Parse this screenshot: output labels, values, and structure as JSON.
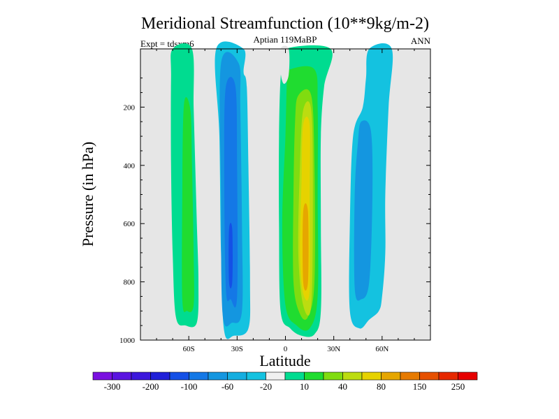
{
  "chart_data": {
    "type": "heatmap",
    "subtype": "filled-contour",
    "title": "Meridional Streamfunction (10**9kg/m-2)",
    "subtitle": "Aptian   119MaBP",
    "left_label": "Expt = tdsxm6",
    "right_label": "ANN",
    "xlabel": "Latitude",
    "ylabel": "Pressure (in hPa)",
    "xlim": [
      -90,
      90
    ],
    "ylim": [
      0,
      1000
    ],
    "y_inverted": true,
    "x_ticks": [
      {
        "value": -60,
        "label": "60S"
      },
      {
        "value": -30,
        "label": "30S"
      },
      {
        "value": 0,
        "label": "0"
      },
      {
        "value": 30,
        "label": "30N"
      },
      {
        "value": 60,
        "label": "60N"
      }
    ],
    "y_ticks": [
      {
        "value": 200,
        "label": "200"
      },
      {
        "value": 400,
        "label": "400"
      },
      {
        "value": 600,
        "label": "600"
      },
      {
        "value": 800,
        "label": "800"
      },
      {
        "value": 1000,
        "label": "1000"
      }
    ],
    "background_color": "#e6e6e6",
    "colorbar": {
      "colors": [
        "#7a10e0",
        "#5a14e0",
        "#3c18dc",
        "#2020d8",
        "#1450e6",
        "#1478e6",
        "#1496e0",
        "#14aee0",
        "#14c2e0",
        "#f0f0f0",
        "#00dc90",
        "#20dc30",
        "#80dc10",
        "#bcdc10",
        "#e6d200",
        "#e6a600",
        "#e67a00",
        "#e65000",
        "#e62800",
        "#e60000"
      ],
      "labels": [
        {
          "after_color": 0,
          "text": "-300"
        },
        {
          "after_color": 2,
          "text": "-200"
        },
        {
          "after_color": 4,
          "text": "-100"
        },
        {
          "after_color": 6,
          "text": "-60"
        },
        {
          "after_color": 8,
          "text": "-20"
        },
        {
          "after_color": 10,
          "text": "10"
        },
        {
          "after_color": 12,
          "text": "40"
        },
        {
          "after_color": 14,
          "text": "80"
        },
        {
          "after_color": 16,
          "text": "150"
        },
        {
          "after_color": 18,
          "text": "250"
        }
      ]
    },
    "contours": [
      {
        "name": "sh-ferrel-outer",
        "value_class": 10,
        "color": "#00dc90",
        "points": [
          [
            -70,
            0
          ],
          [
            -58,
            0
          ],
          [
            -57,
            200
          ],
          [
            -56,
            400
          ],
          [
            -55,
            600
          ],
          [
            -54,
            800
          ],
          [
            -55,
            940
          ],
          [
            -62,
            950
          ],
          [
            -68,
            920
          ],
          [
            -70,
            700
          ],
          [
            -71,
            400
          ],
          [
            -71,
            100
          ]
        ]
      },
      {
        "name": "sh-ferrel-core",
        "value_class": 40,
        "color": "#20dc30",
        "points": [
          [
            -63,
            190
          ],
          [
            -59,
            210
          ],
          [
            -58,
            400
          ],
          [
            -57,
            700
          ],
          [
            -57,
            880
          ],
          [
            -61,
            900
          ],
          [
            -64,
            860
          ],
          [
            -64,
            500
          ]
        ]
      },
      {
        "name": "sh-hadley-outer",
        "value_class": -20,
        "color": "#14c2e0",
        "points": [
          [
            -43,
            0
          ],
          [
            -26,
            0
          ],
          [
            -26,
            80
          ],
          [
            -24,
            130
          ],
          [
            -23,
            400
          ],
          [
            -22,
            800
          ],
          [
            -23,
            960
          ],
          [
            -32,
            985
          ],
          [
            -38,
            970
          ],
          [
            -40,
            700
          ],
          [
            -41,
            300
          ]
        ]
      },
      {
        "name": "sh-hadley-level2",
        "value_class": -60,
        "color": "#1496e0",
        "points": [
          [
            -40,
            50
          ],
          [
            -29,
            50
          ],
          [
            -28,
            200
          ],
          [
            -27,
            600
          ],
          [
            -27,
            900
          ],
          [
            -33,
            940
          ],
          [
            -39,
            910
          ],
          [
            -40,
            500
          ]
        ]
      },
      {
        "name": "sh-hadley-level3",
        "value_class": -60,
        "color": "#1478e6",
        "points": [
          [
            -37,
            130
          ],
          [
            -31,
            130
          ],
          [
            -30,
            400
          ],
          [
            -30,
            850
          ],
          [
            -34,
            860
          ],
          [
            -37,
            820
          ],
          [
            -38,
            400
          ]
        ]
      },
      {
        "name": "sh-hadley-core",
        "value_class": -100,
        "color": "#1450e6",
        "points": [
          [
            -35,
            620
          ],
          [
            -33,
            620
          ],
          [
            -33,
            800
          ],
          [
            -35,
            800
          ]
        ]
      },
      {
        "name": "nh-hadley-outer",
        "value_class": 10,
        "color": "#00dc90",
        "points": [
          [
            0,
            0
          ],
          [
            28,
            0
          ],
          [
            24,
            130
          ],
          [
            22,
            300
          ],
          [
            22,
            600
          ],
          [
            22,
            900
          ],
          [
            18,
            980
          ],
          [
            10,
            985
          ],
          [
            3,
            960
          ],
          [
            -3,
            900
          ],
          [
            -4,
            600
          ],
          [
            -4,
            300
          ],
          [
            -3,
            100
          ],
          [
            -1,
            60
          ]
        ]
      },
      {
        "name": "nh-hadley-level2",
        "value_class": 40,
        "color": "#20dc30",
        "points": [
          [
            3,
            70
          ],
          [
            18,
            70
          ],
          [
            20,
            200
          ],
          [
            20,
            500
          ],
          [
            20,
            850
          ],
          [
            15,
            960
          ],
          [
            7,
            950
          ],
          [
            0,
            880
          ],
          [
            -2,
            600
          ],
          [
            0,
            300
          ],
          [
            1,
            100
          ]
        ]
      },
      {
        "name": "nh-hadley-level3",
        "value_class": 80,
        "color": "#80dc10",
        "points": [
          [
            8,
            160
          ],
          [
            16,
            160
          ],
          [
            18,
            400
          ],
          [
            18,
            800
          ],
          [
            14,
            920
          ],
          [
            9,
            910
          ],
          [
            5,
            800
          ],
          [
            5,
            500
          ],
          [
            6,
            250
          ]
        ]
      },
      {
        "name": "nh-hadley-level4",
        "value_class": 80,
        "color": "#bcdc10",
        "points": [
          [
            11,
            210
          ],
          [
            16,
            210
          ],
          [
            17,
            500
          ],
          [
            16,
            880
          ],
          [
            11,
            880
          ],
          [
            8,
            700
          ],
          [
            9,
            400
          ]
        ]
      },
      {
        "name": "nh-hadley-level5",
        "value_class": 150,
        "color": "#e6d200",
        "points": [
          [
            11,
            260
          ],
          [
            15,
            260
          ],
          [
            15,
            500
          ],
          [
            15,
            830
          ],
          [
            11,
            840
          ],
          [
            9,
            700
          ],
          [
            10,
            450
          ]
        ]
      },
      {
        "name": "nh-hadley-core",
        "value_class": 150,
        "color": "#e6a600",
        "points": [
          [
            11,
            560
          ],
          [
            14,
            560
          ],
          [
            14,
            800
          ],
          [
            11,
            800
          ]
        ]
      },
      {
        "name": "nh-ferrel-outer",
        "value_class": -20,
        "color": "#14c2e0",
        "points": [
          [
            52,
            0
          ],
          [
            66,
            0
          ],
          [
            64,
            200
          ],
          [
            62,
            500
          ],
          [
            62,
            700
          ],
          [
            60,
            850
          ],
          [
            58,
            900
          ],
          [
            52,
            930
          ],
          [
            46,
            960
          ],
          [
            40,
            900
          ],
          [
            40,
            600
          ],
          [
            42,
            300
          ],
          [
            48,
            200
          ],
          [
            50,
            100
          ]
        ]
      },
      {
        "name": "nh-ferrel-core",
        "value_class": -60,
        "color": "#1496e0",
        "points": [
          [
            47,
            250
          ],
          [
            53,
            280
          ],
          [
            54,
            500
          ],
          [
            52,
            800
          ],
          [
            47,
            860
          ],
          [
            43,
            820
          ],
          [
            43,
            500
          ],
          [
            45,
            320
          ]
        ]
      },
      {
        "name": "equator-gap-top",
        "value_class": 0,
        "color": "#e6e6e6",
        "points": [
          [
            -3,
            0
          ],
          [
            2,
            0
          ],
          [
            2,
            90
          ],
          [
            -1,
            120
          ],
          [
            -3,
            80
          ]
        ]
      }
    ]
  }
}
